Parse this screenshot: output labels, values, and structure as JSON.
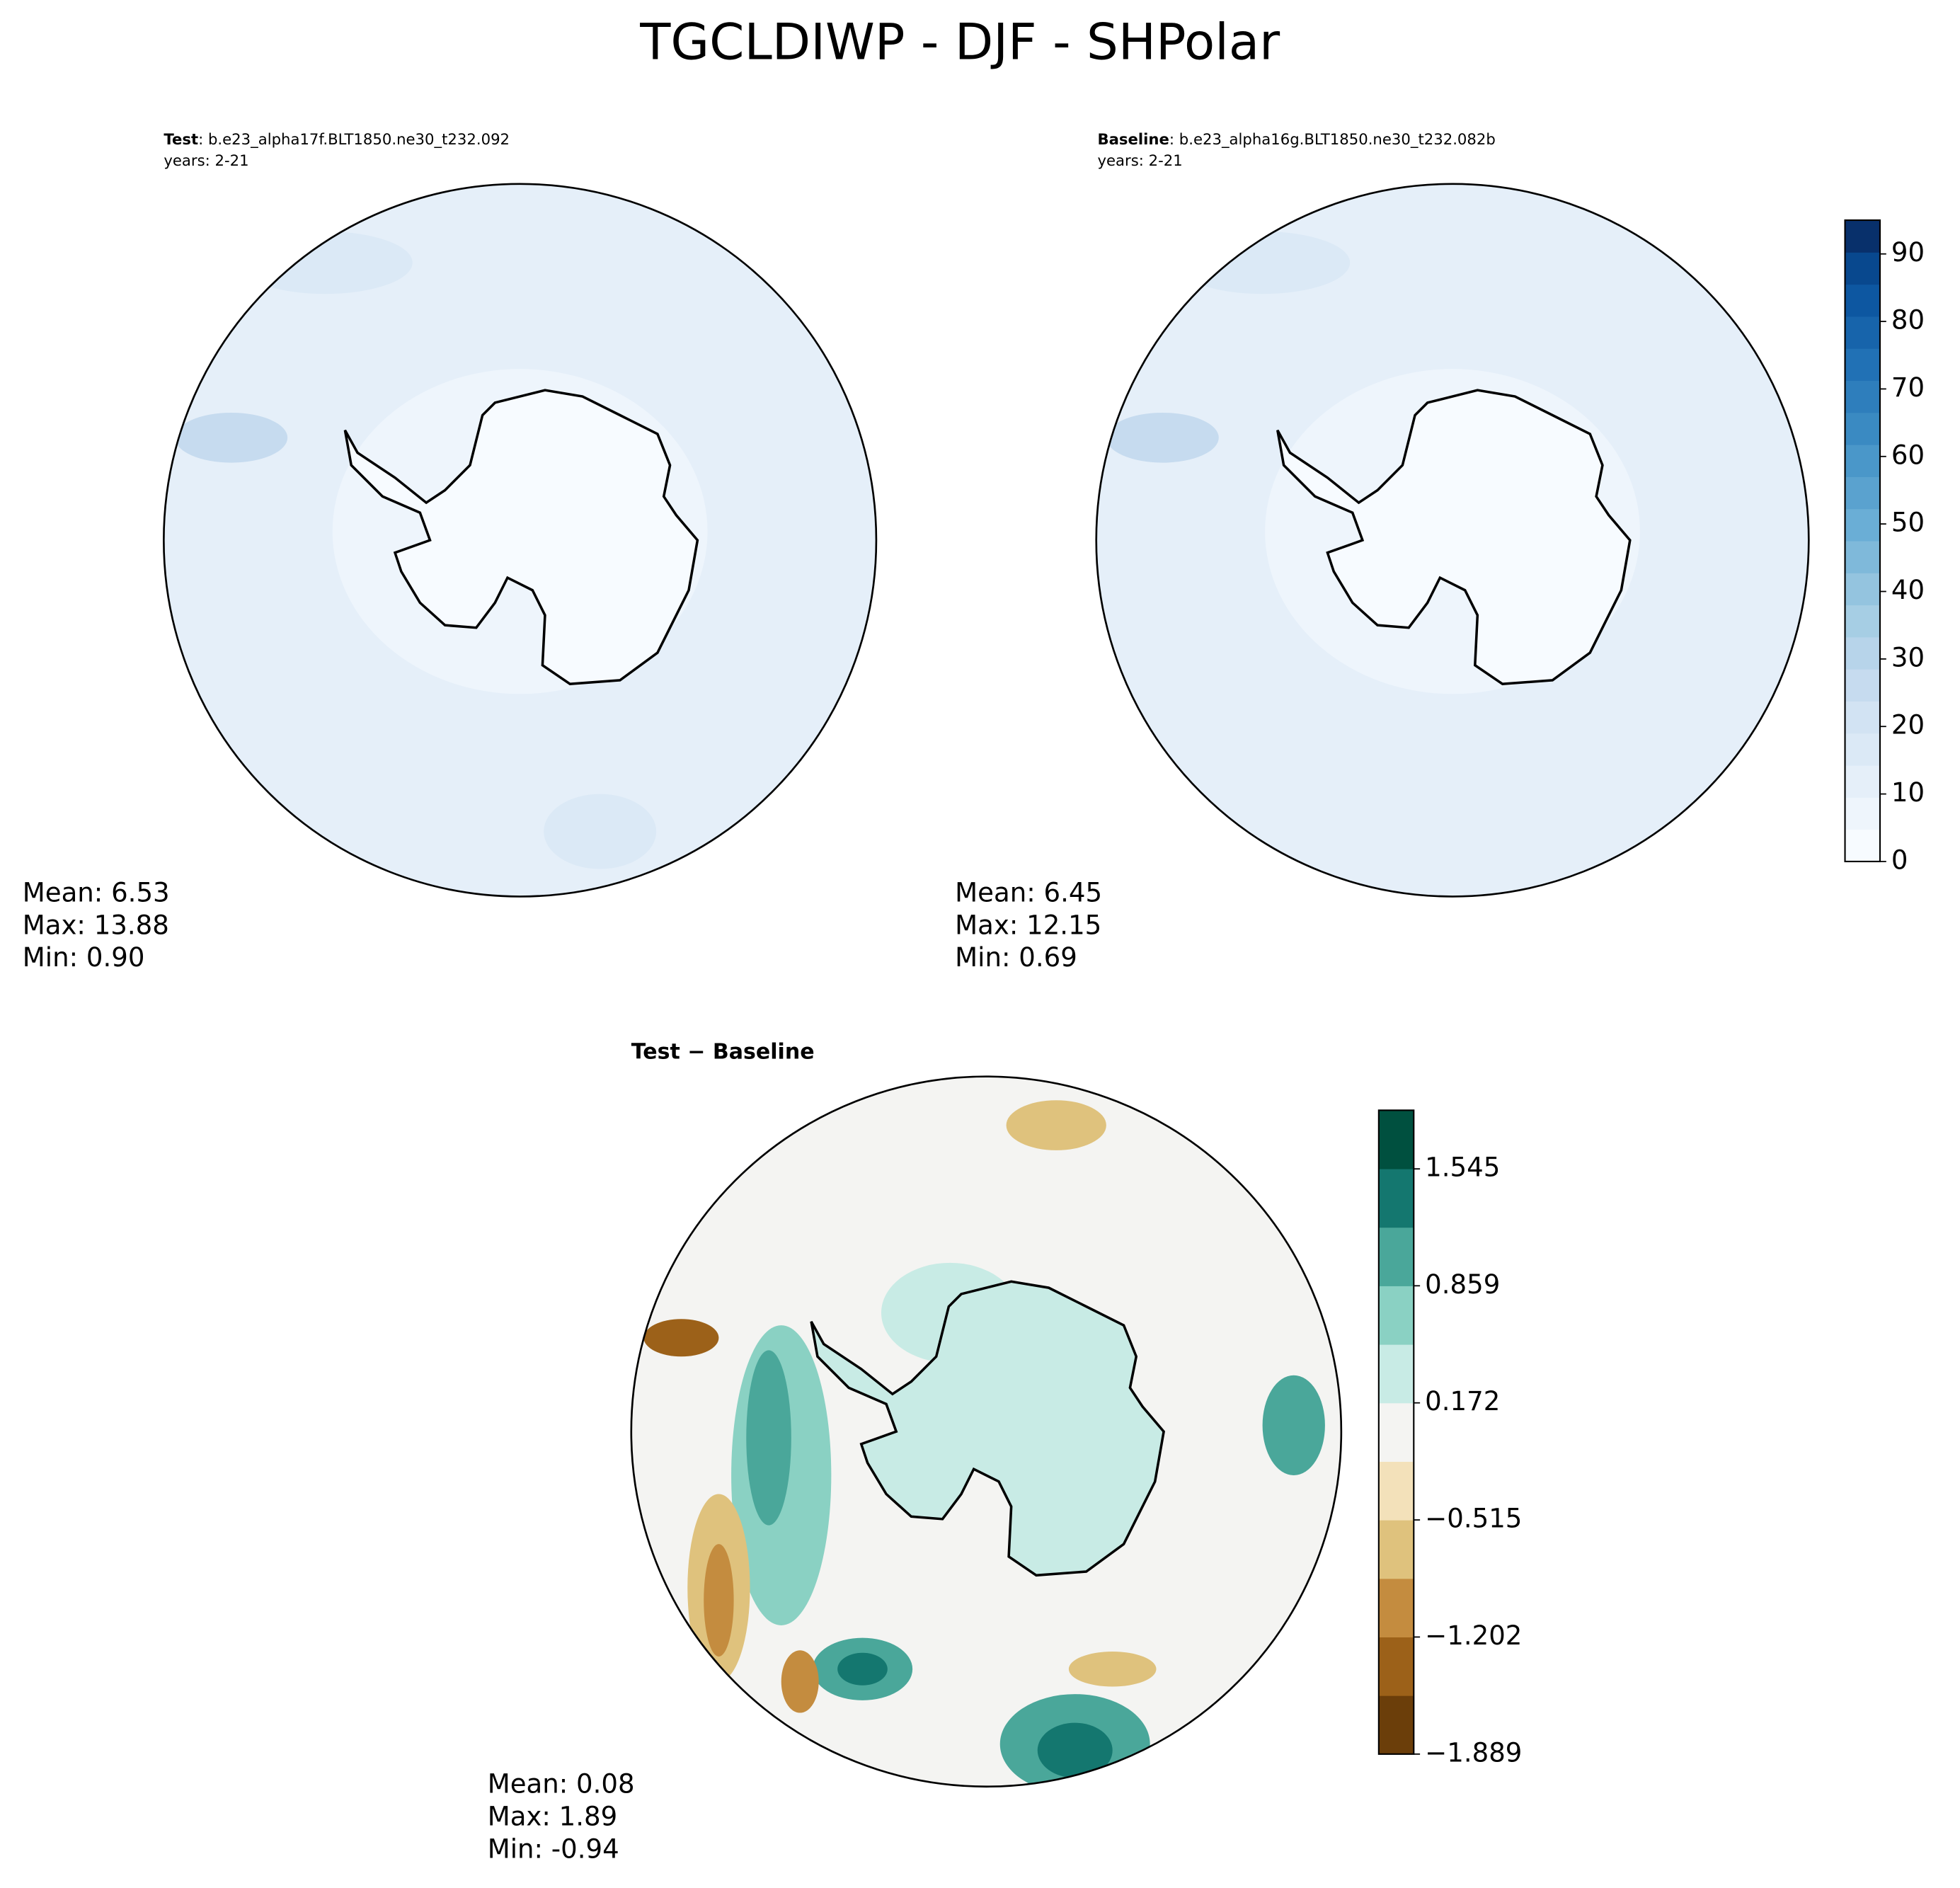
{
  "title": "TGCLDIWP - DJF - SHPolar",
  "panels": [
    {
      "name": "Test",
      "case": ": b.e23_alpha17f.BLT1850.ne30_t232.092",
      "years": "years: 2-21",
      "stats": [
        "Mean:  6.53",
        "Max: 13.88",
        "Min:  0.90"
      ]
    },
    {
      "name": "Baseline",
      "case": ": b.e23_alpha16g.BLT1850.ne30_t232.082b",
      "years": "years: 2-21",
      "stats": [
        "Mean:  6.45",
        "Max: 12.15",
        "Min:  0.69"
      ]
    },
    {
      "name": "Test − Baseline",
      "stats": [
        "Mean:  0.08",
        "Max:  1.89",
        "Min: -0.94"
      ]
    }
  ],
  "colorbars": [
    {
      "lim": [
        0,
        95
      ],
      "ticks": [
        0,
        10,
        20,
        30,
        40,
        50,
        60,
        70,
        80,
        90
      ],
      "colors": [
        "#f7fbff",
        "#eef5fc",
        "#e5eff9",
        "#dbe9f6",
        "#d2e3f3",
        "#c6dbef",
        "#b7d4ea",
        "#a6cee4",
        "#94c4df",
        "#7fb9da",
        "#6aaed6",
        "#5aa2cf",
        "#4a97c9",
        "#3a8ac2",
        "#2e7ebc",
        "#2171b5",
        "#1764ab",
        "#0d57a1",
        "#08488e",
        "#08306b"
      ]
    },
    {
      "lim": [
        -1.889,
        1.889
      ],
      "ticks": [
        {
          "value": -1.889,
          "label": "−1.889"
        },
        {
          "value": -1.202,
          "label": "−1.202"
        },
        {
          "value": -0.515,
          "label": "−0.515"
        },
        0.172,
        0.859,
        1.545
      ],
      "colors": [
        "#6b3e0a",
        "#9c6119",
        "#c48c3f",
        "#dfc27d",
        "#f3e1ba",
        "#f4f4f2",
        "#c8ebe5",
        "#8ad1c3",
        "#4aa79a",
        "#14776f",
        "#00503f"
      ]
    }
  ]
}
